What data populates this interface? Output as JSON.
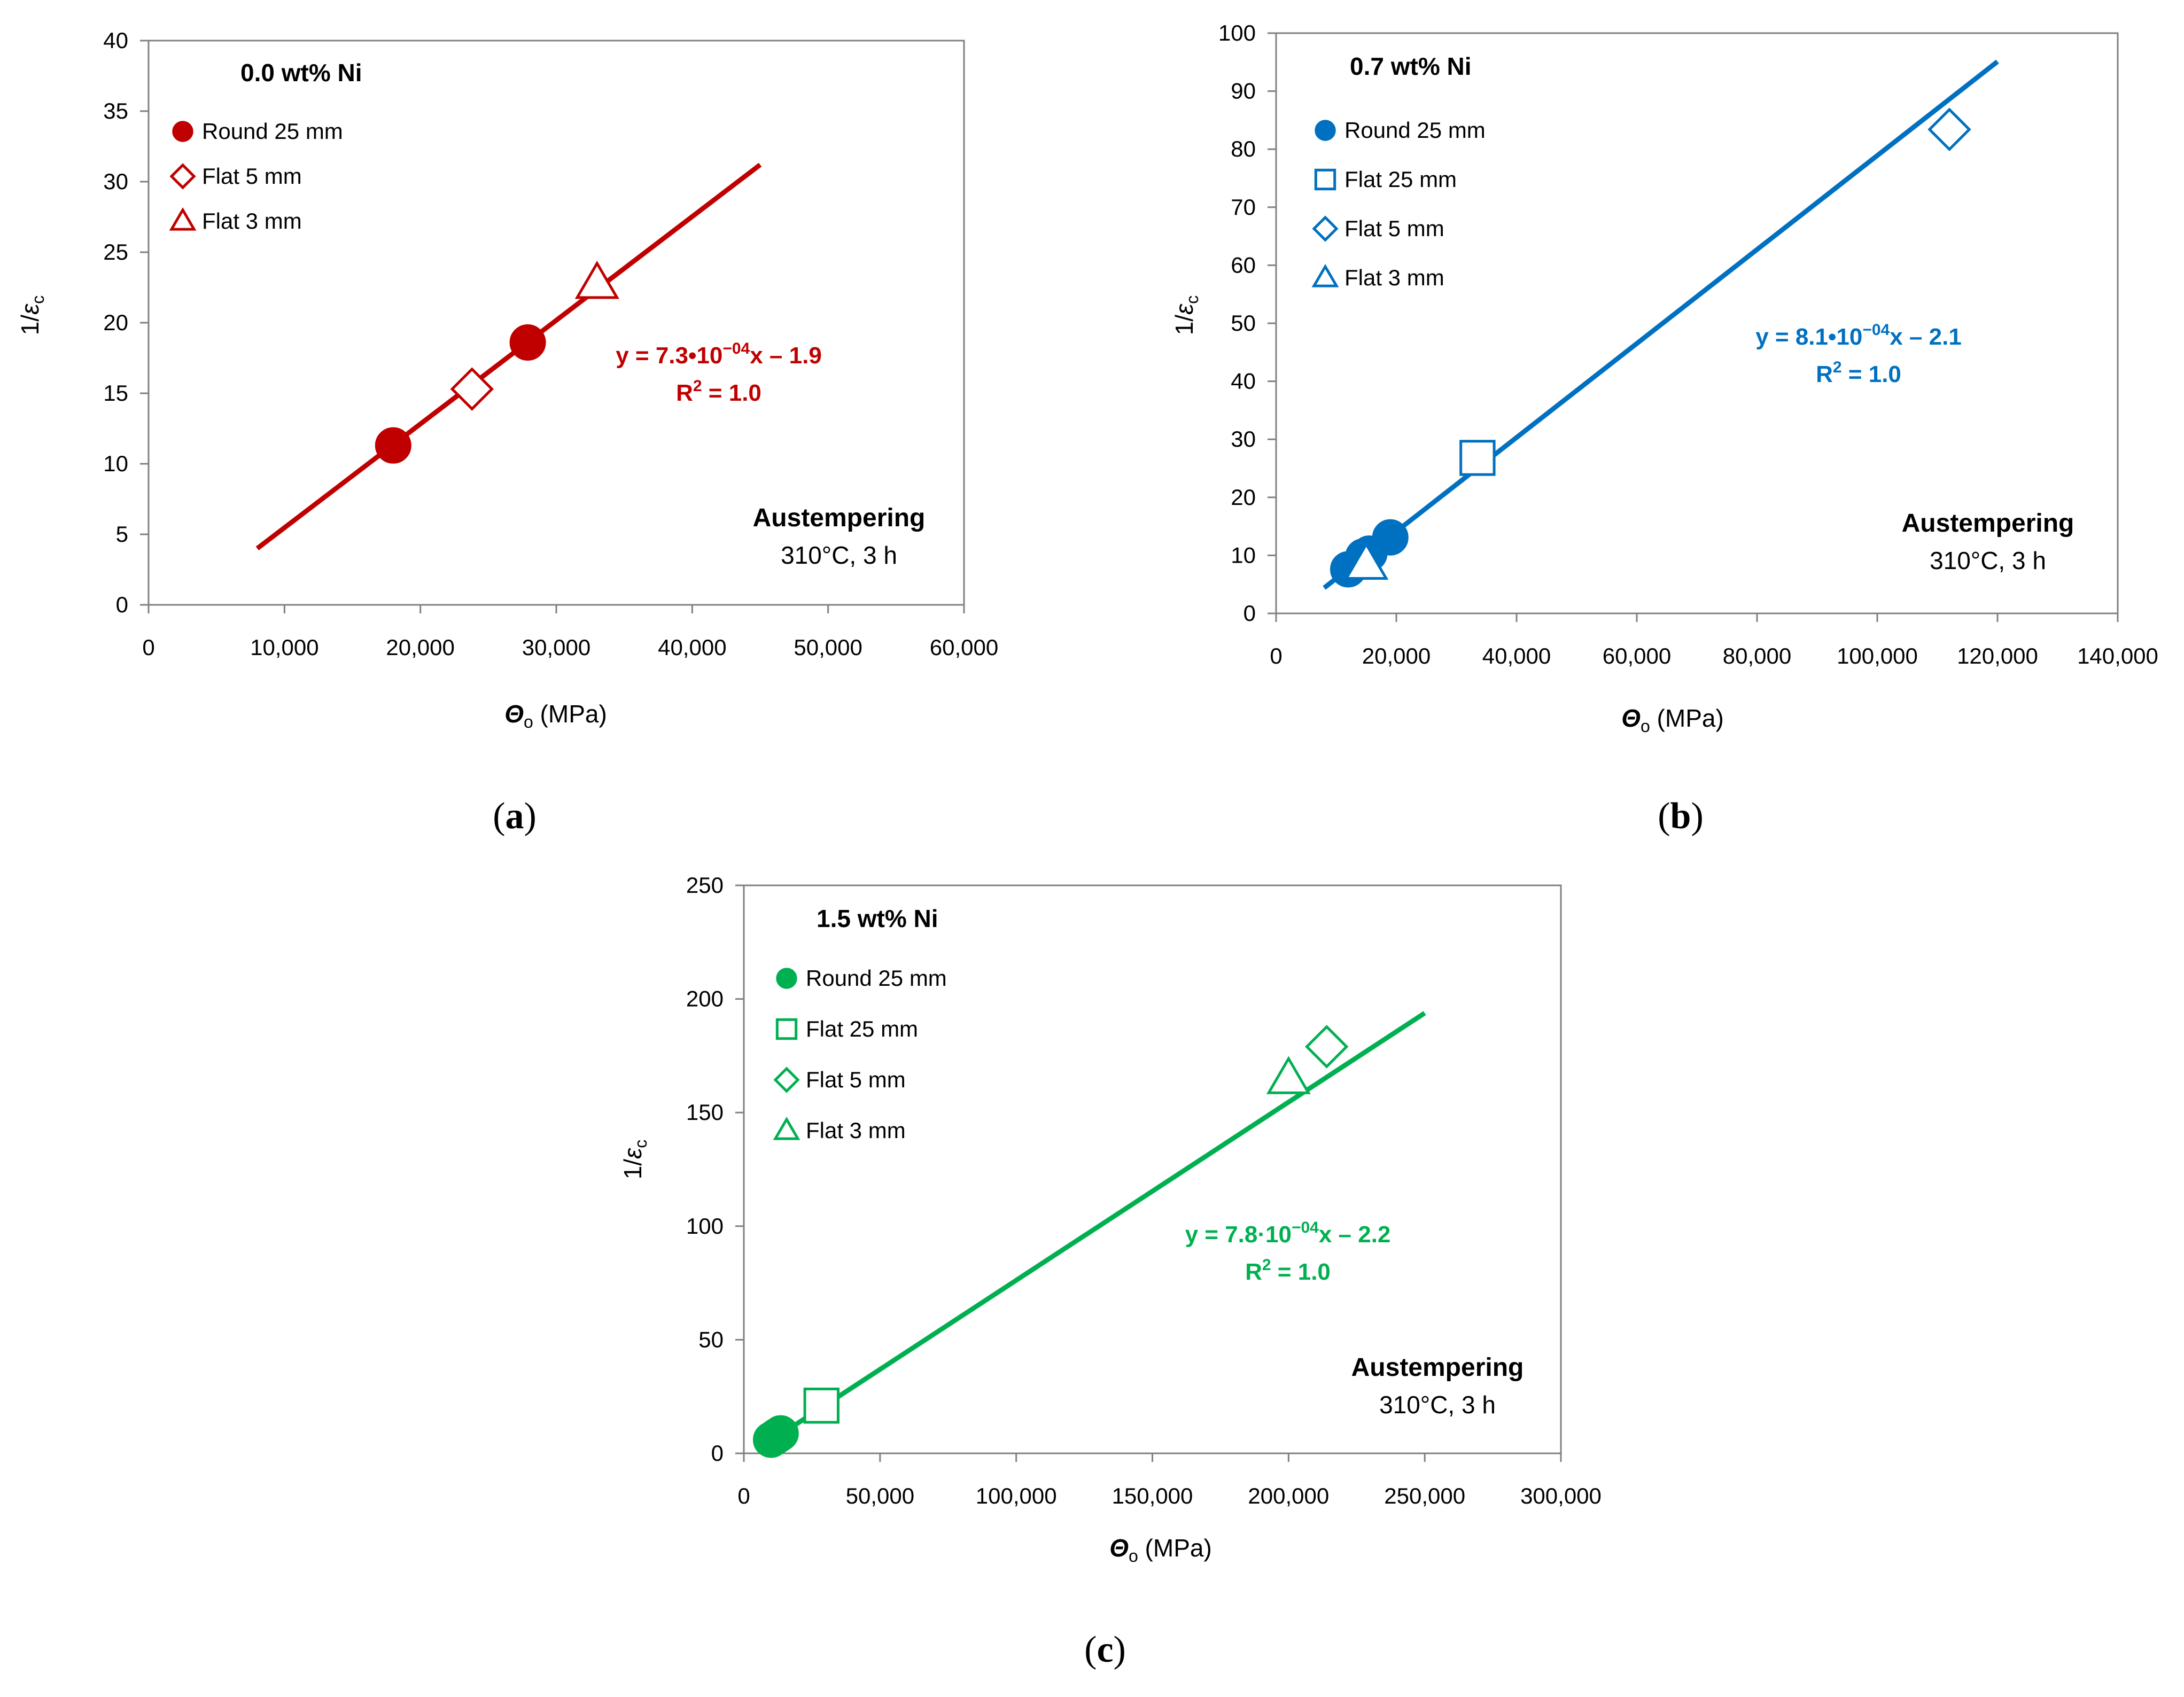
{
  "panel_labels": [
    "(a)",
    "(b)",
    "(c)"
  ],
  "chart_data": [
    {
      "type": "scatter",
      "title": "0.0 wt% Ni",
      "color": "#C00000",
      "xlabel_symbol": "Θ",
      "xlabel_sub": "o",
      "xlabel_unit": " (MPa)",
      "ylabel_prefix": "1/",
      "ylabel_symbol": "ε",
      "ylabel_sub": "c",
      "xlim": [
        0,
        60000
      ],
      "ylim": [
        0,
        40
      ],
      "xticks": [
        0,
        10000,
        20000,
        30000,
        40000,
        50000,
        60000
      ],
      "xtick_labels": [
        "0",
        "10,000",
        "20,000",
        "30,000",
        "40,000",
        "50,000",
        "60,000"
      ],
      "yticks": [
        0,
        5,
        10,
        15,
        20,
        25,
        30,
        35,
        40
      ],
      "ytick_labels": [
        "0",
        "5",
        "10",
        "15",
        "20",
        "25",
        "30",
        "35",
        "40"
      ],
      "grid": false,
      "legend_position": "top-left",
      "series": [
        {
          "name": "Round 25 mm",
          "marker": "circle-filled",
          "points": [
            [
              18000,
              11.3
            ],
            [
              27900,
              18.6
            ]
          ]
        },
        {
          "name": "Flat 5 mm",
          "marker": "diamond-open",
          "points": [
            [
              23800,
              15.3
            ]
          ]
        },
        {
          "name": "Flat 3 mm",
          "marker": "triangle-open",
          "points": [
            [
              33000,
              22.8
            ]
          ]
        }
      ],
      "fit": {
        "x_start": 8000,
        "x_end": 45000,
        "y_start": 4.0,
        "y_end": 31.2
      },
      "equation": "y = 7.3•10",
      "equation_exp": "−04",
      "equation_tail": "x – 1.9",
      "r2_prefix": "R",
      "r2_sup": "2",
      "r2_tail": " = 1.0",
      "note_title": "Austempering",
      "note_sub": "310°C, 3 h"
    },
    {
      "type": "scatter",
      "title": "0.7 wt% Ni",
      "color": "#0070C0",
      "xlabel_symbol": "Θ",
      "xlabel_sub": "o",
      "xlabel_unit": " (MPa)",
      "ylabel_prefix": "1/",
      "ylabel_symbol": "ε",
      "ylabel_sub": "c",
      "xlim": [
        0,
        140000
      ],
      "ylim": [
        0,
        100
      ],
      "xticks": [
        0,
        20000,
        40000,
        60000,
        80000,
        100000,
        120000,
        140000
      ],
      "xtick_labels": [
        "0",
        "20,000",
        "40,000",
        "60,000",
        "80,000",
        "100,000",
        "120,000",
        "140,000"
      ],
      "yticks": [
        0,
        10,
        20,
        30,
        40,
        50,
        60,
        70,
        80,
        90,
        100
      ],
      "ytick_labels": [
        "0",
        "10",
        "20",
        "30",
        "40",
        "50",
        "60",
        "70",
        "80",
        "90",
        "100"
      ],
      "grid": false,
      "legend_position": "top-left",
      "series": [
        {
          "name": "Round 25 mm",
          "marker": "circle-filled",
          "points": [
            [
              12000,
              7.6
            ],
            [
              14500,
              9.8
            ],
            [
              15500,
              10.3
            ],
            [
              19000,
              13.1
            ]
          ]
        },
        {
          "name": "Flat 25 mm",
          "marker": "square-open",
          "points": [
            [
              33500,
              26.8
            ]
          ]
        },
        {
          "name": "Flat 5 mm",
          "marker": "diamond-open",
          "points": [
            [
              112000,
              83.4
            ]
          ]
        },
        {
          "name": "Flat 3 mm",
          "marker": "triangle-open",
          "points": [
            [
              15000,
              8.5
            ]
          ]
        }
      ],
      "fit": {
        "x_start": 8000,
        "x_end": 120000,
        "y_start": 4.4,
        "y_end": 95.1
      },
      "equation": "y = 8.1•10",
      "equation_exp": "−04",
      "equation_tail": "x – 2.1",
      "r2_prefix": "R",
      "r2_sup": "2",
      "r2_tail": " = 1.0",
      "note_title": "Austempering",
      "note_sub": "310°C, 3 h"
    },
    {
      "type": "scatter",
      "title": "1.5 wt% Ni",
      "color": "#00B050",
      "xlabel_symbol": "Θ",
      "xlabel_sub": "o",
      "xlabel_unit": " (MPa)",
      "ylabel_prefix": "1/",
      "ylabel_symbol": "ε",
      "ylabel_sub": "c",
      "xlim": [
        0,
        300000
      ],
      "ylim": [
        0,
        250
      ],
      "xticks": [
        0,
        50000,
        100000,
        150000,
        200000,
        250000,
        300000
      ],
      "xtick_labels": [
        "0",
        "50,000",
        "100,000",
        "150,000",
        "200,000",
        "250,000",
        "300,000"
      ],
      "yticks": [
        0,
        50,
        100,
        150,
        200,
        250
      ],
      "ytick_labels": [
        "0",
        "50",
        "100",
        "150",
        "200",
        "250"
      ],
      "grid": false,
      "legend_position": "top-left",
      "series": [
        {
          "name": "Round 25 mm",
          "marker": "circle-filled",
          "points": [
            [
              10000,
              6.0
            ],
            [
              11500,
              7.2
            ],
            [
              12500,
              8.0
            ],
            [
              13500,
              8.8
            ]
          ]
        },
        {
          "name": "Flat 25 mm",
          "marker": "square-open",
          "points": [
            [
              28500,
              21.0
            ]
          ]
        },
        {
          "name": "Flat 5 mm",
          "marker": "diamond-open",
          "points": [
            [
              214000,
              179.0
            ]
          ]
        },
        {
          "name": "Flat 3 mm",
          "marker": "triangle-open",
          "points": [
            [
              200000,
              165.0
            ]
          ]
        }
      ],
      "fit": {
        "x_start": 10000,
        "x_end": 250000,
        "y_start": 5.6,
        "y_end": 193.8
      },
      "equation": "y = 7.8·10",
      "equation_exp": "−04",
      "equation_tail": "x – 2.2",
      "r2_prefix": "R",
      "r2_sup": "2",
      "r2_tail": " = 1.0",
      "note_title": "Austempering",
      "note_sub": "310°C, 3 h"
    }
  ]
}
